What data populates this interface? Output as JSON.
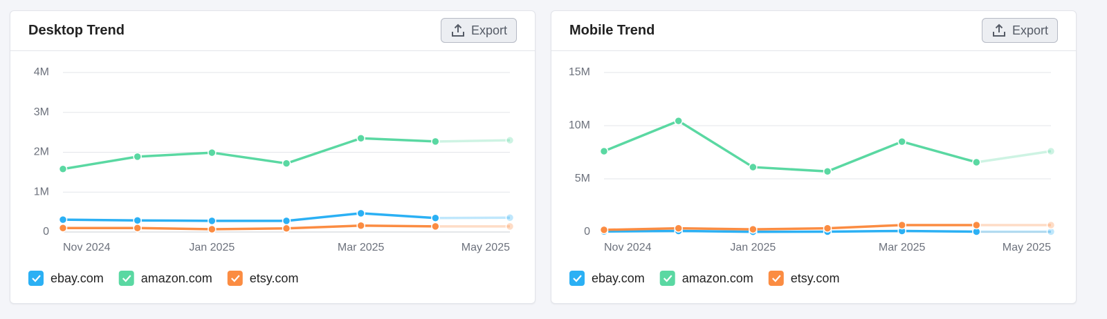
{
  "chart_data": [
    {
      "type": "line",
      "title": "Desktop Trend",
      "export_label": "Export",
      "categories": [
        "Nov 2024",
        null,
        "Jan 2025",
        null,
        "Mar 2025",
        null,
        "May 2025"
      ],
      "ylim": [
        0,
        4000000
      ],
      "yticks": [
        0,
        {
          "value": 1000000,
          "label": "1M"
        },
        {
          "value": 2000000,
          "label": "2M"
        },
        {
          "value": 3000000,
          "label": "3M"
        },
        {
          "value": 4000000,
          "label": "4M"
        }
      ],
      "grid": true,
      "faded_last_point": true,
      "series": [
        {
          "name": "ebay.com",
          "color": "#2bb0f4",
          "values": [
            310000,
            290000,
            280000,
            280000,
            470000,
            350000,
            360000
          ]
        },
        {
          "name": "amazon.com",
          "color": "#5ad8a2",
          "values": [
            1580000,
            1890000,
            1990000,
            1720000,
            2350000,
            2270000,
            2300000
          ]
        },
        {
          "name": "etsy.com",
          "color": "#fb8c42",
          "values": [
            100000,
            100000,
            70000,
            90000,
            160000,
            140000,
            140000
          ]
        }
      ]
    },
    {
      "type": "line",
      "title": "Mobile Trend",
      "export_label": "Export",
      "categories": [
        "Nov 2024",
        null,
        "Jan 2025",
        null,
        "Mar 2025",
        null,
        "May 2025"
      ],
      "ylim": [
        0,
        15000000
      ],
      "yticks": [
        0,
        {
          "value": 5000000,
          "label": "5M"
        },
        {
          "value": 10000000,
          "label": "10M"
        },
        {
          "value": 15000000,
          "label": "15M"
        }
      ],
      "grid": true,
      "faded_last_point": true,
      "series": [
        {
          "name": "ebay.com",
          "color": "#2bb0f4",
          "values": [
            50000,
            100000,
            20000,
            30000,
            100000,
            30000,
            30000
          ]
        },
        {
          "name": "amazon.com",
          "color": "#5ad8a2",
          "values": [
            7600000,
            10450000,
            6100000,
            5700000,
            8500000,
            6560000,
            7600000
          ]
        },
        {
          "name": "etsy.com",
          "color": "#fb8c42",
          "values": [
            200000,
            350000,
            250000,
            350000,
            650000,
            650000,
            650000
          ]
        }
      ]
    }
  ]
}
